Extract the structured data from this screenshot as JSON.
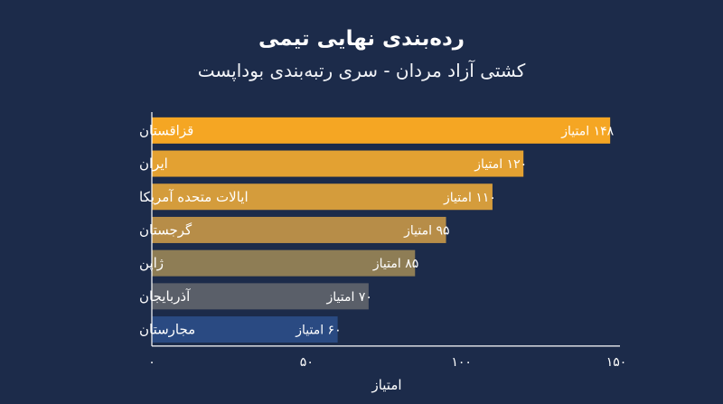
{
  "chart_data": {
    "type": "bar",
    "orientation": "horizontal",
    "title": "رده‌بندی نهایی تیمی",
    "subtitle": "کشتی آزاد مردان - سری رتبه‌بندی بوداپست",
    "xlabel": "امتیاز",
    "categories": [
      "قزاقستان",
      "ایران",
      "ایالات متحده آمریکا",
      "گرجستان",
      "ژاپن",
      "آذربایجان",
      "مجارستان"
    ],
    "values": [
      148,
      120,
      110,
      95,
      85,
      70,
      60
    ],
    "value_labels": [
      "۱۴۸ امتیاز",
      "۱۲۰ امتیاز",
      "۱۱۰ امتیاز",
      "۹۵ امتیاز",
      "۸۵ امتیاز",
      "۷۰ امتیاز",
      "۶۰ امتیاز"
    ],
    "xlim": [
      0,
      150
    ],
    "ticks": [
      0,
      50,
      100,
      150
    ],
    "tick_labels": [
      "۰",
      "۵۰",
      "۱۰۰",
      "۱۵۰"
    ],
    "grid": false,
    "bar_colors": [
      "#f5a623",
      "#e3a132",
      "#d49c3c",
      "#b78d48",
      "#8e7d55",
      "#5a5f69",
      "#2a4a82"
    ],
    "background": "#1c2b4a"
  }
}
